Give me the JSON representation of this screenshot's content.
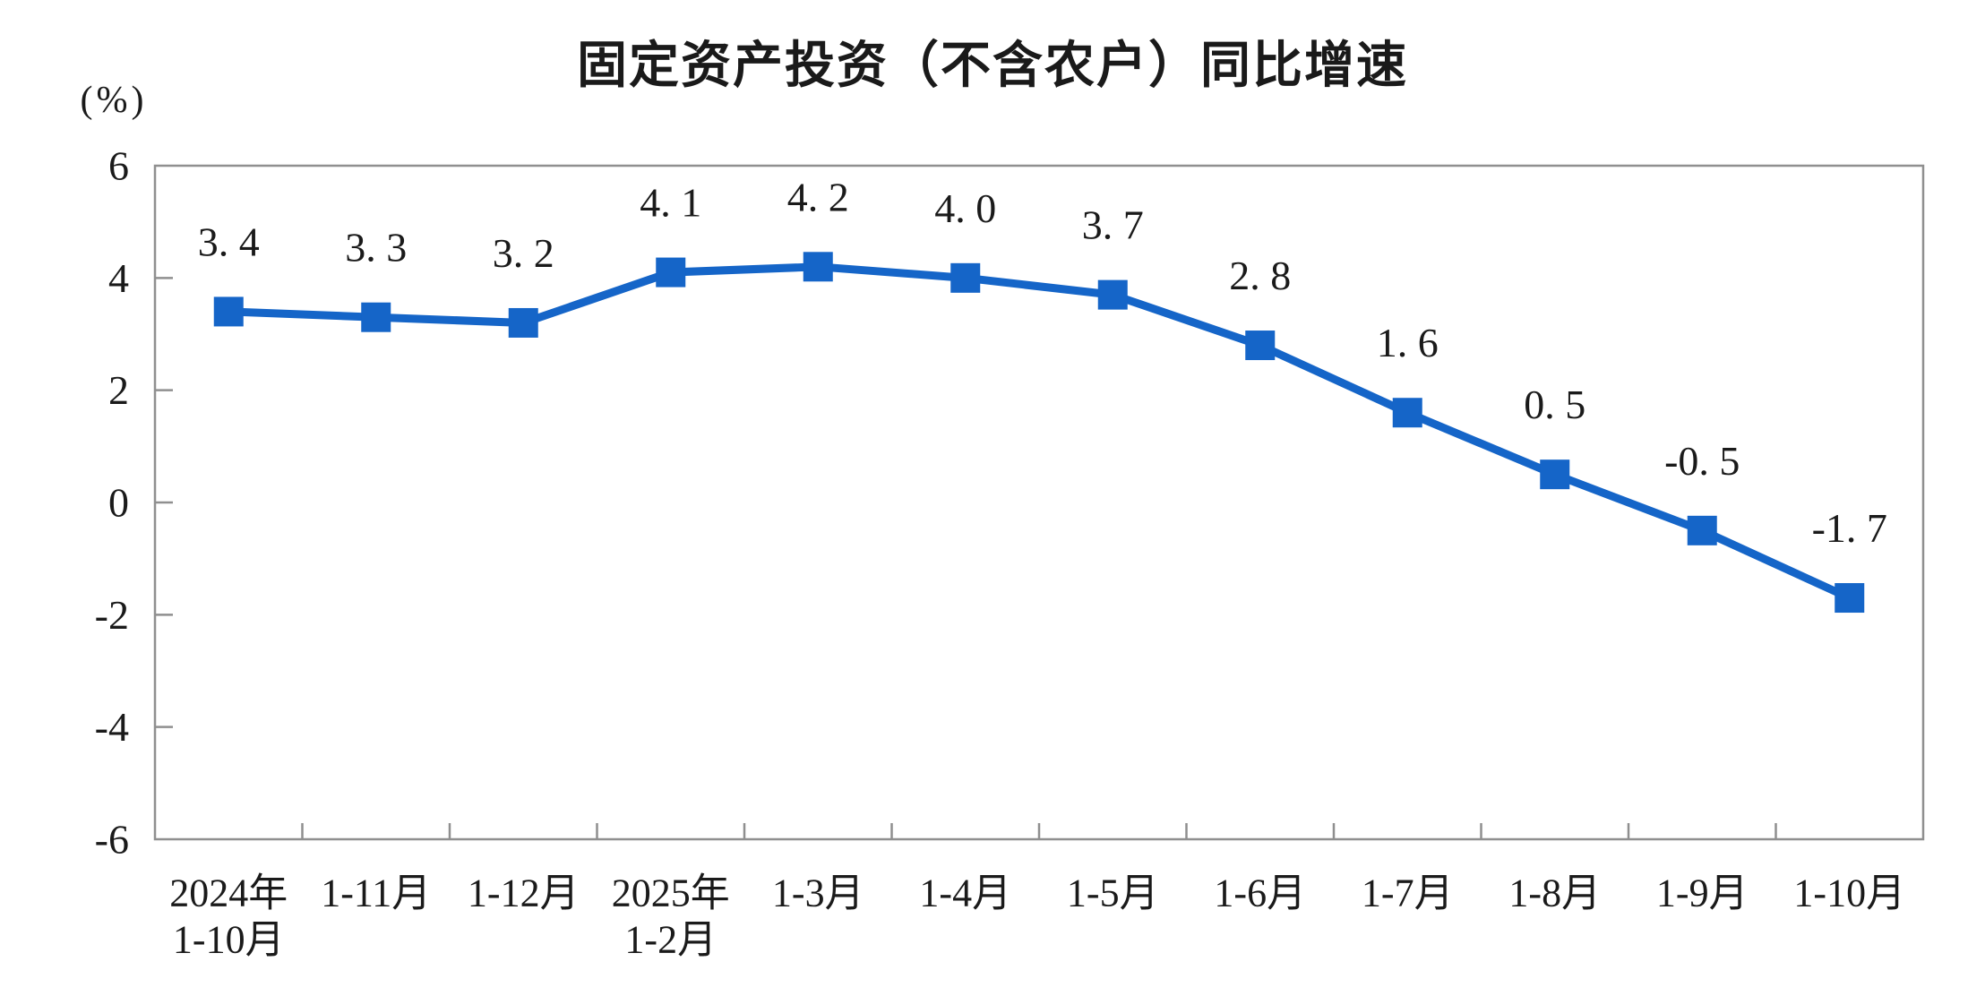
{
  "chart_data": {
    "type": "line",
    "title": "固定资产投资（不含农户）同比增速",
    "y_unit": "(%)",
    "xlabel": "",
    "ylabel": "(%)",
    "ylim": [
      -6,
      6
    ],
    "y_tick_step": 2,
    "y_tick_labels": [
      "6",
      "4",
      "2",
      "0",
      "-2",
      "-4",
      "-6"
    ],
    "categories": [
      [
        "2024年",
        "1-10月"
      ],
      [
        "1-11月"
      ],
      [
        "1-12月"
      ],
      [
        "2025年",
        "1-2月"
      ],
      [
        "1-3月"
      ],
      [
        "1-4月"
      ],
      [
        "1-5月"
      ],
      [
        "1-6月"
      ],
      [
        "1-7月"
      ],
      [
        "1-8月"
      ],
      [
        "1-9月"
      ],
      [
        "1-10月"
      ]
    ],
    "values": [
      3.4,
      3.3,
      3.2,
      4.1,
      4.2,
      4.0,
      3.7,
      2.8,
      1.6,
      0.5,
      -0.5,
      -1.7
    ],
    "point_labels": [
      "3. 4",
      "3. 3",
      "3. 2",
      "4. 1",
      "4. 2",
      "4. 0",
      "3. 7",
      "2. 8",
      "1. 6",
      "0. 5",
      "-0. 5",
      "-1. 7"
    ],
    "grid": "off",
    "legend": "none",
    "marker": "square",
    "colors": {
      "line": "#1565c8",
      "marker": "#1565c8",
      "axis": "#8f8f8f",
      "text": "#1a1a1a",
      "background": "#ffffff"
    }
  }
}
